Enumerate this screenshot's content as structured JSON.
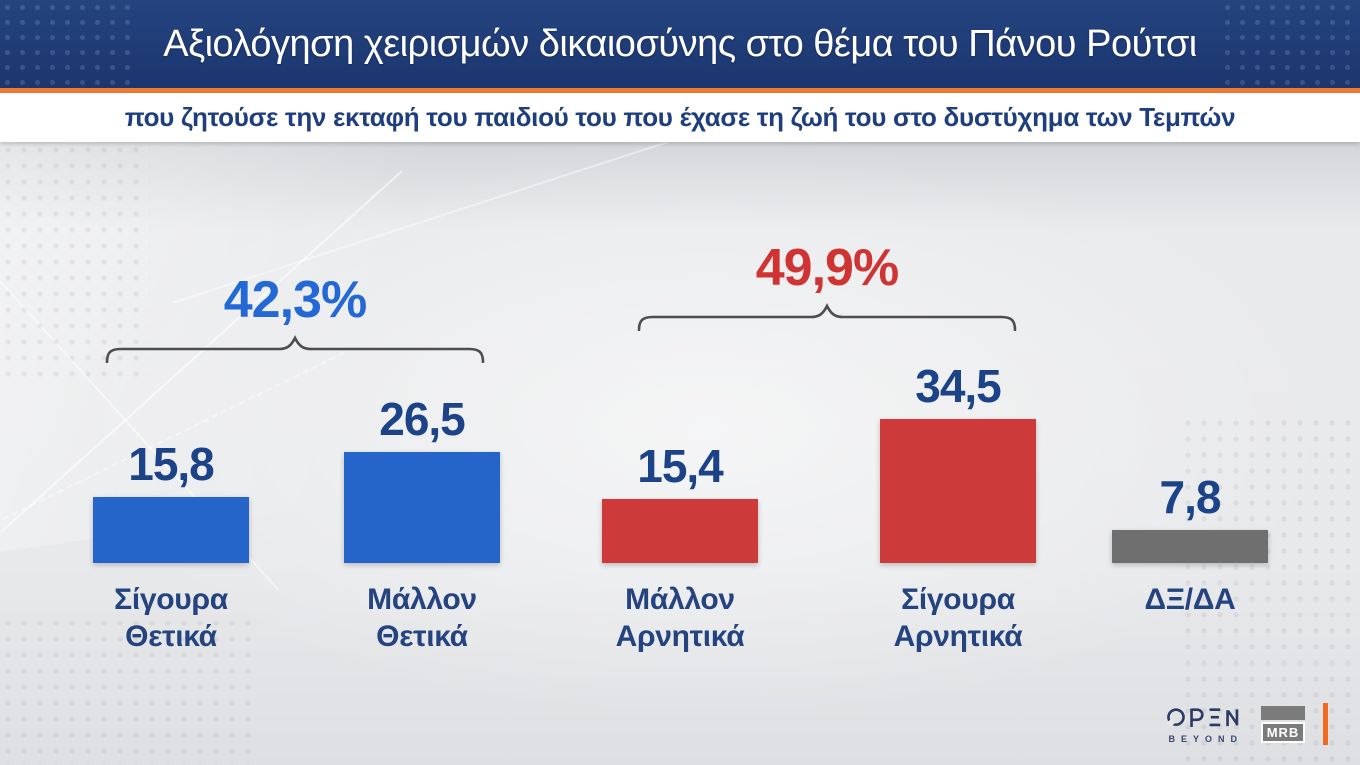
{
  "header": {
    "title": "Αξιολόγηση χειρισμών δικαιοσύνης στο θέμα του Πάνου Ρούτσι",
    "subtitle": "που ζητούσε την εκταφή του παιδιού του που έχασε τη ζωή του στο δυστύχημα των Τεμπών"
  },
  "chart_data": {
    "type": "bar",
    "categories": [
      [
        "Σίγουρα",
        "Θετικά"
      ],
      [
        "Μάλλον",
        "Θετικά"
      ],
      [
        "Μάλλον",
        "Αρνητικά"
      ],
      [
        "Σίγουρα",
        "Αρνητικά"
      ],
      [
        "ΔΞ/ΔΑ"
      ]
    ],
    "values": [
      15.8,
      26.5,
      15.4,
      34.5,
      7.8
    ],
    "value_labels": [
      "15,8",
      "26,5",
      "15,4",
      "34,5",
      "7,8"
    ],
    "bar_colors": [
      "#2564c9",
      "#2564c9",
      "#cc3a3a",
      "#cc3a3a",
      "#6f6f6f"
    ],
    "value_label_color": "#1c4288",
    "category_label_color": "#24437f",
    "groups": [
      {
        "label": "42,3%",
        "color": "#2368d4",
        "bars": [
          0,
          1
        ]
      },
      {
        "label": "49,9%",
        "color": "#cf3433",
        "bars": [
          2,
          3
        ]
      }
    ],
    "bracket_color": "#4d4d4d",
    "ylim": [
      0,
      40
    ],
    "grid": false,
    "legend": false
  },
  "branding": {
    "open_logo": "OPEN",
    "open_sub": "BEYOND",
    "mrb_label": "MRB"
  },
  "colors": {
    "banner": "#1f3b76",
    "accent_orange": "#ee7a33",
    "subtitle_text": "#1e3e7e",
    "content_bg": "#e8e9eb"
  }
}
